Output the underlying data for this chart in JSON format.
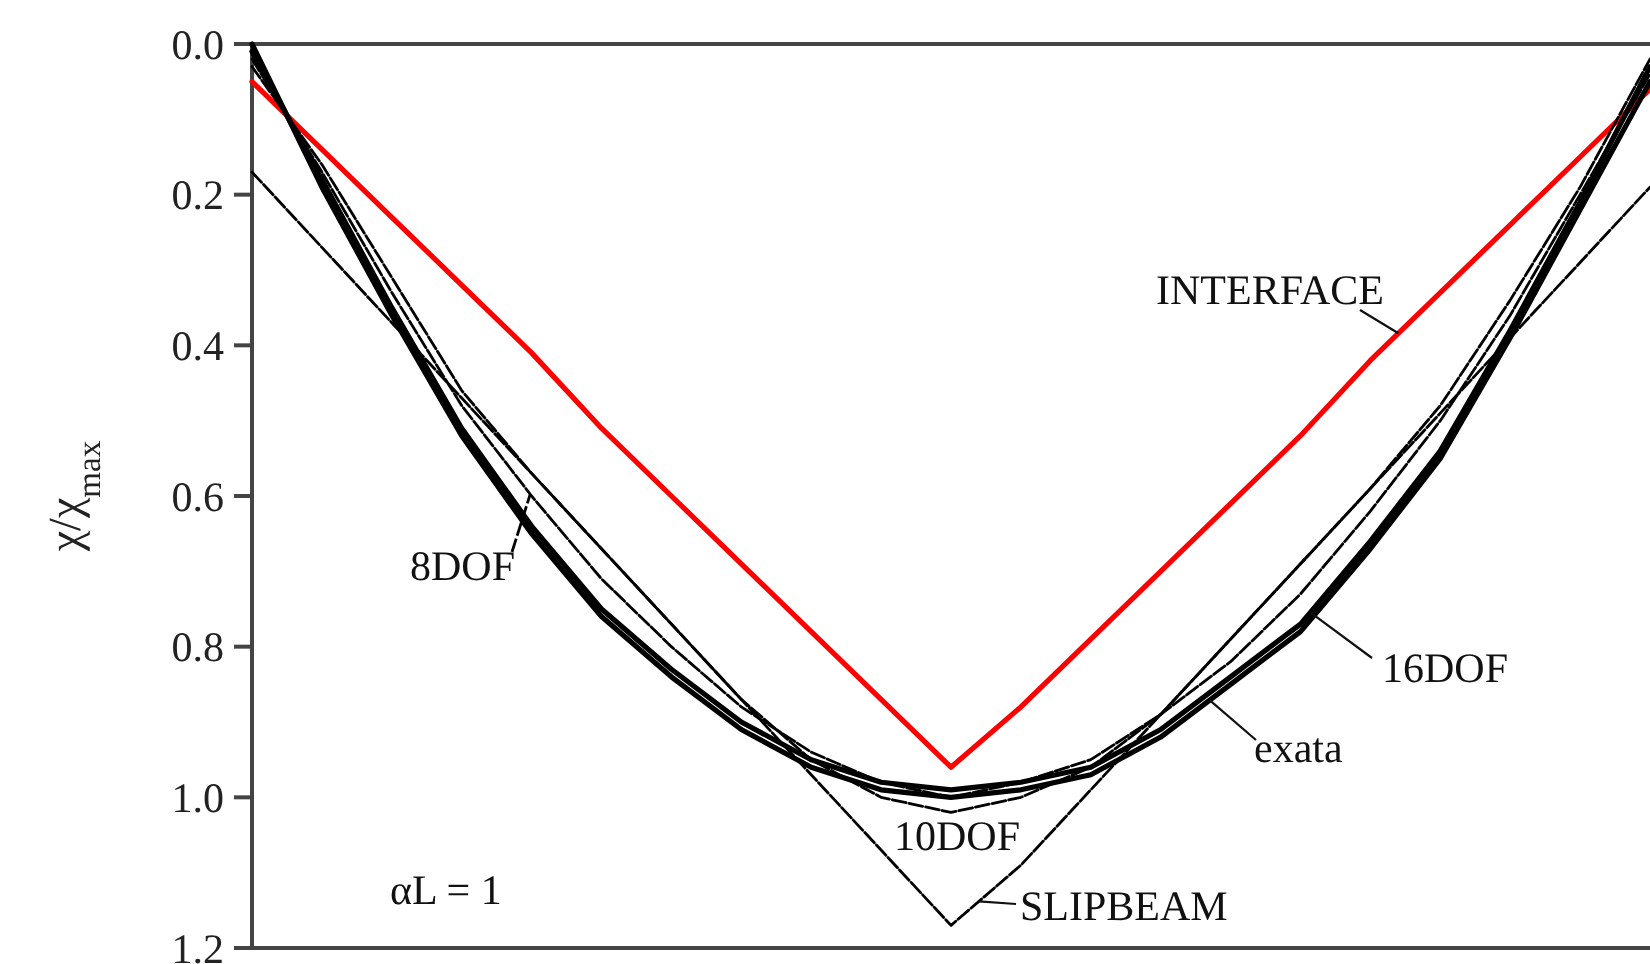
{
  "chart_data": {
    "type": "line",
    "ylabel": "χ/χ$_{max}$",
    "categories": [
      null,
      null,
      null,
      null,
      null,
      null,
      null,
      null,
      null,
      null,
      null,
      null,
      null,
      null,
      null,
      null,
      null,
      null,
      null,
      null,
      null
    ],
    "series": [
      {
        "name": "INTERFACE",
        "color": "#ff0000",
        "line_style": "solid",
        "values": [
          0.05,
          0.14,
          0.23,
          0.32,
          0.41,
          0.51,
          0.6,
          0.69,
          0.78,
          0.87,
          0.96,
          0.88,
          0.79,
          0.7,
          0.61,
          0.52,
          0.42,
          0.33,
          0.24,
          0.15,
          0.06
        ]
      },
      {
        "name": "SLIPBEAM",
        "color": "#000000",
        "line_style": "dashed",
        "values": [
          0.17,
          0.27,
          0.37,
          0.47,
          0.57,
          0.67,
          0.77,
          0.87,
          0.97,
          1.07,
          1.17,
          1.09,
          0.99,
          0.89,
          0.79,
          0.69,
          0.59,
          0.49,
          0.39,
          0.29,
          0.19
        ]
      },
      {
        "name": "10DOF",
        "color": "#000000",
        "line_style": "dashed",
        "values": [
          0.03,
          0.16,
          0.31,
          0.46,
          0.57,
          0.67,
          0.77,
          0.87,
          0.95,
          1.0,
          1.02,
          1.0,
          0.96,
          0.89,
          0.79,
          0.69,
          0.59,
          0.48,
          0.34,
          0.19,
          0.02
        ]
      },
      {
        "name": "8DOF",
        "color": "#000000",
        "line_style": "dashed",
        "values": [
          0.02,
          0.17,
          0.33,
          0.48,
          0.6,
          0.71,
          0.8,
          0.88,
          0.94,
          0.98,
          1.0,
          0.98,
          0.95,
          0.89,
          0.82,
          0.73,
          0.62,
          0.5,
          0.36,
          0.2,
          0.04
        ]
      },
      {
        "name": "16DOF",
        "color": "#000000",
        "line_style": "solid",
        "values": [
          0.01,
          0.18,
          0.35,
          0.51,
          0.64,
          0.75,
          0.83,
          0.9,
          0.95,
          0.98,
          0.99,
          0.98,
          0.96,
          0.91,
          0.84,
          0.77,
          0.66,
          0.54,
          0.38,
          0.21,
          0.03
        ]
      },
      {
        "name": "exata",
        "color": "#000000",
        "line_style": "solid",
        "values": [
          0,
          0.19,
          0.36,
          0.52,
          0.65,
          0.76,
          0.84,
          0.91,
          0.96,
          0.99,
          1.0,
          0.99,
          0.97,
          0.92,
          0.85,
          0.78,
          0.67,
          0.55,
          0.39,
          0.22,
          0.05
        ]
      }
    ],
    "ylim": [
      1.2,
      0
    ],
    "yticks": [
      {
        "value": 0,
        "label": "0.0"
      },
      0.2,
      0.4,
      0.6,
      0.8,
      {
        "value": 1,
        "label": "1.0"
      },
      1.2
    ],
    "tick_labels": "y",
    "annotations": [
      "αL = 1"
    ]
  }
}
